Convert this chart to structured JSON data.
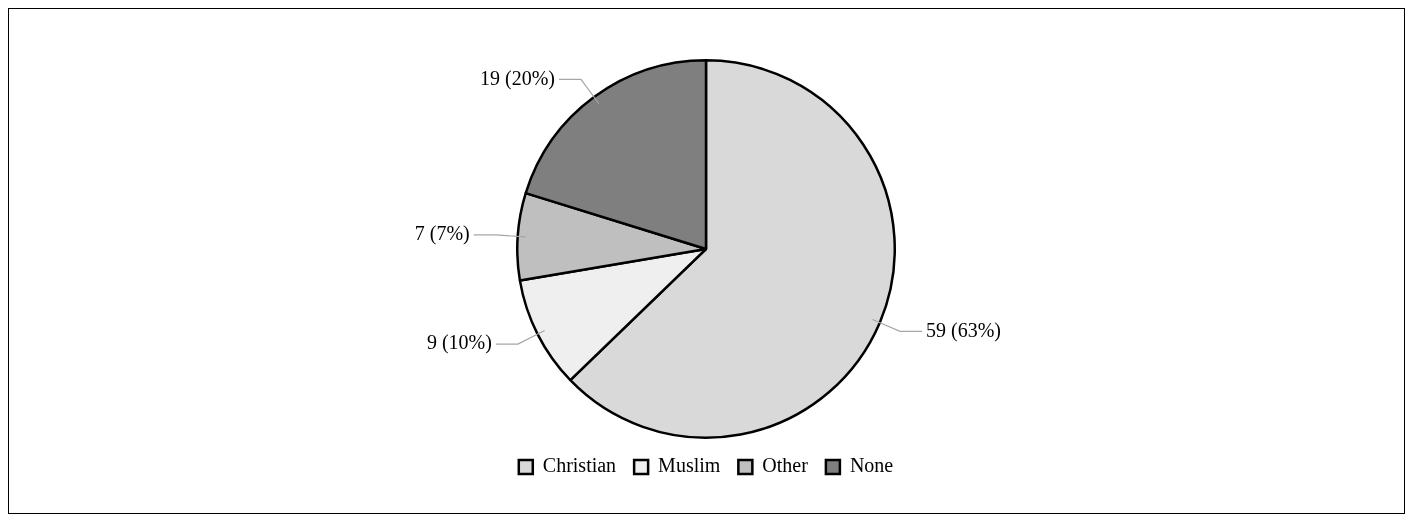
{
  "chart_data": {
    "type": "pie",
    "categories": [
      "Christian",
      "Muslim",
      "Other",
      "None"
    ],
    "values": [
      59,
      9,
      7,
      19
    ],
    "value_labels": [
      "59 (63%)",
      "9 (10%)",
      "7 (7%)",
      "19 (20%)"
    ],
    "colors": [
      "#d9d9d9",
      "#efefef",
      "#bfbfbf",
      "#7f7f7f"
    ],
    "legend": "bottom"
  }
}
